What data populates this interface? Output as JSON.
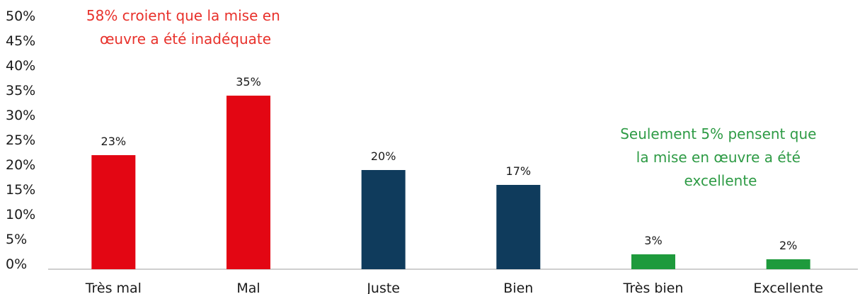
{
  "chart_data": {
    "type": "bar",
    "categories": [
      "Très mal",
      "Mal",
      "Juste",
      "Bien",
      "Très bien",
      "Excellente"
    ],
    "values": [
      23,
      35,
      20,
      17,
      3,
      2
    ],
    "data_labels": [
      "23%",
      "35%",
      "20%",
      "17%",
      "3%",
      "2%"
    ],
    "bar_colors": [
      "#e30613",
      "#e30613",
      "#0f3b5c",
      "#0f3b5c",
      "#1e9a3c",
      "#1e9a3c"
    ],
    "ylim": [
      0,
      50
    ],
    "yticks": [
      "0%",
      "5%",
      "10%",
      "15%",
      "20%",
      "25%",
      "30%",
      "35%",
      "40%",
      "45%",
      "50%"
    ],
    "grid": false,
    "annotations": [
      {
        "lines": [
          "58% croient que la mise en",
          "œuvre a été inadéquate"
        ],
        "color": "#e8312b"
      },
      {
        "lines": [
          "Seulement 5% pensent que",
          "la mise en œuvre a été",
          "excellente"
        ],
        "color": "#2e9b45"
      }
    ]
  }
}
